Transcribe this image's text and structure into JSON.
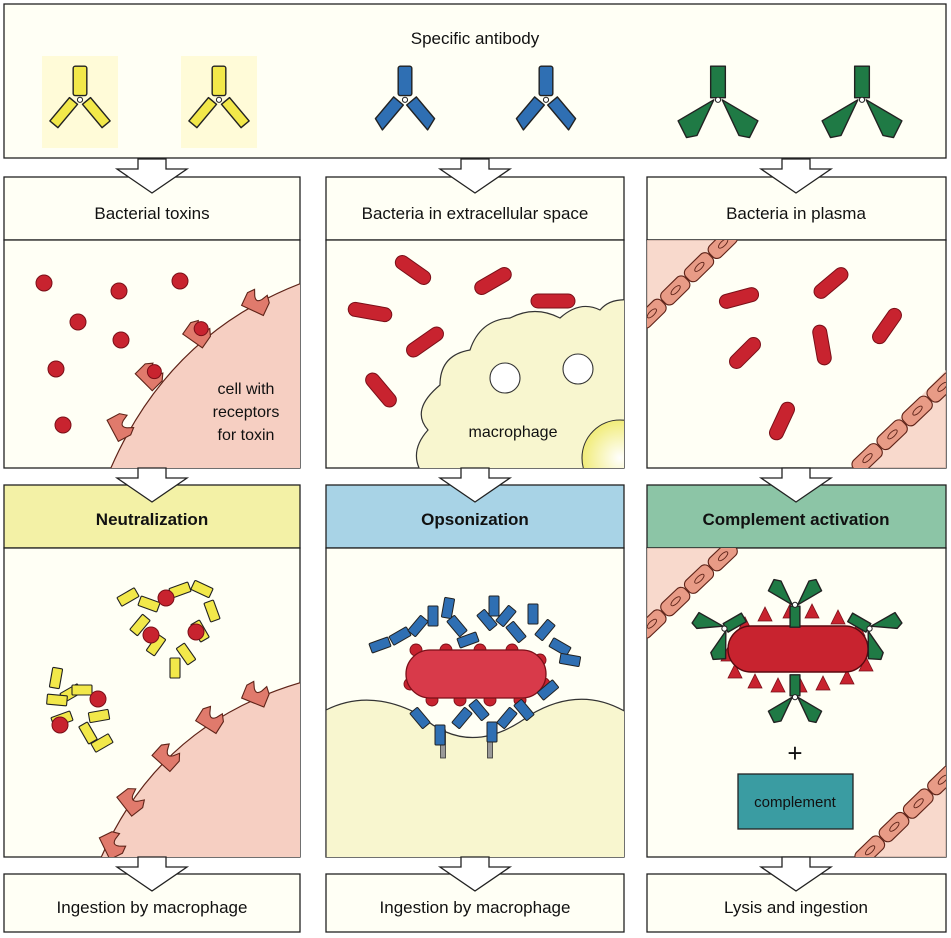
{
  "top": {
    "title": "Specific antibody"
  },
  "antibody_colors": {
    "yellow": "#f2e84a",
    "blue": "#2f6fb3",
    "green": "#1f7a45"
  },
  "columns": [
    {
      "situation": "Bacterial toxins",
      "mechanism": "Neutralization",
      "mechanism_color": "#f3f1a6",
      "outcome": "Ingestion by macrophage",
      "cell_label": [
        "cell with",
        "receptors",
        "for toxin"
      ]
    },
    {
      "situation": "Bacteria in extracellular space",
      "mechanism": "Opsonization",
      "mechanism_color": "#a8d3e6",
      "outcome": "Ingestion by macrophage",
      "cell_label": [
        "macrophage"
      ]
    },
    {
      "situation": "Bacteria in plasma",
      "mechanism": "Complement activation",
      "mechanism_color": "#8cc5a6",
      "outcome": "Lysis and ingestion",
      "complement_label": "complement",
      "plus": "+"
    }
  ],
  "colors": {
    "bacteria": "#c8232f",
    "cell": "#f6cfc2",
    "receptor": "#e07a6c",
    "macrophage": "#f8f6cf",
    "vessel": "#e89b86",
    "complement_box": "#3a9ca2"
  }
}
